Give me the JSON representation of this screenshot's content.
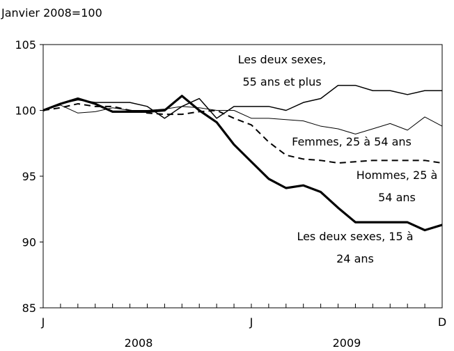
{
  "chart_data": {
    "type": "line",
    "y_label": "Janvier 2008=100",
    "categories": [
      "J",
      null,
      null,
      null,
      null,
      null,
      null,
      null,
      null,
      null,
      null,
      null,
      "J",
      null,
      null,
      null,
      null,
      null,
      null,
      null,
      null,
      null,
      null,
      "D"
    ],
    "year_labels": [
      "2008",
      "2009"
    ],
    "ylim": [
      85,
      105
    ],
    "yticks": [
      85,
      90,
      95,
      100,
      105
    ],
    "series": [
      {
        "name": "Les deux sexes, 55 ans et plus",
        "color": "#000",
        "style": "solid",
        "values": [
          100,
          100.5,
          100.8,
          100.6,
          100.6,
          100.6,
          100.3,
          99.4,
          100.3,
          100.9,
          99.4,
          100.3,
          100.3,
          100.3,
          100,
          100.6,
          100.9,
          101.9,
          101.9,
          101.5,
          101.5,
          101.2,
          101.5,
          101.5
        ]
      },
      {
        "name": "Femmes, 25 à 54 ans",
        "color": "#000",
        "style": "thin",
        "values": [
          100,
          100.4,
          99.8,
          99.9,
          100.2,
          100,
          100,
          100.1,
          100.3,
          100.2,
          100,
          100,
          99.4,
          99.4,
          99.3,
          99.2,
          98.8,
          98.6,
          98.2,
          98.6,
          99,
          98.5,
          99.5,
          98.8
        ]
      },
      {
        "name": "Hommes, 25 à 54 ans",
        "color": "#000",
        "style": "dashed",
        "values": [
          100,
          100.2,
          100.5,
          100.3,
          100.3,
          100,
          99.8,
          99.7,
          99.7,
          99.9,
          100,
          99.4,
          98.9,
          97.6,
          96.6,
          96.3,
          96.2,
          96,
          96.1,
          96.2,
          96.2,
          96.2,
          96.2,
          96
        ]
      },
      {
        "name": "Les deux sexes, 15 à 24 ans",
        "color": "#000",
        "style": "bold",
        "values": [
          100,
          100.5,
          100.9,
          100.5,
          99.9,
          99.9,
          99.9,
          100,
          101.1,
          100,
          99.1,
          97.4,
          96.1,
          94.8,
          94.1,
          94.3,
          93.8,
          92.6,
          91.5,
          91.5,
          91.5,
          91.5,
          90.9,
          91.3
        ]
      }
    ]
  }
}
